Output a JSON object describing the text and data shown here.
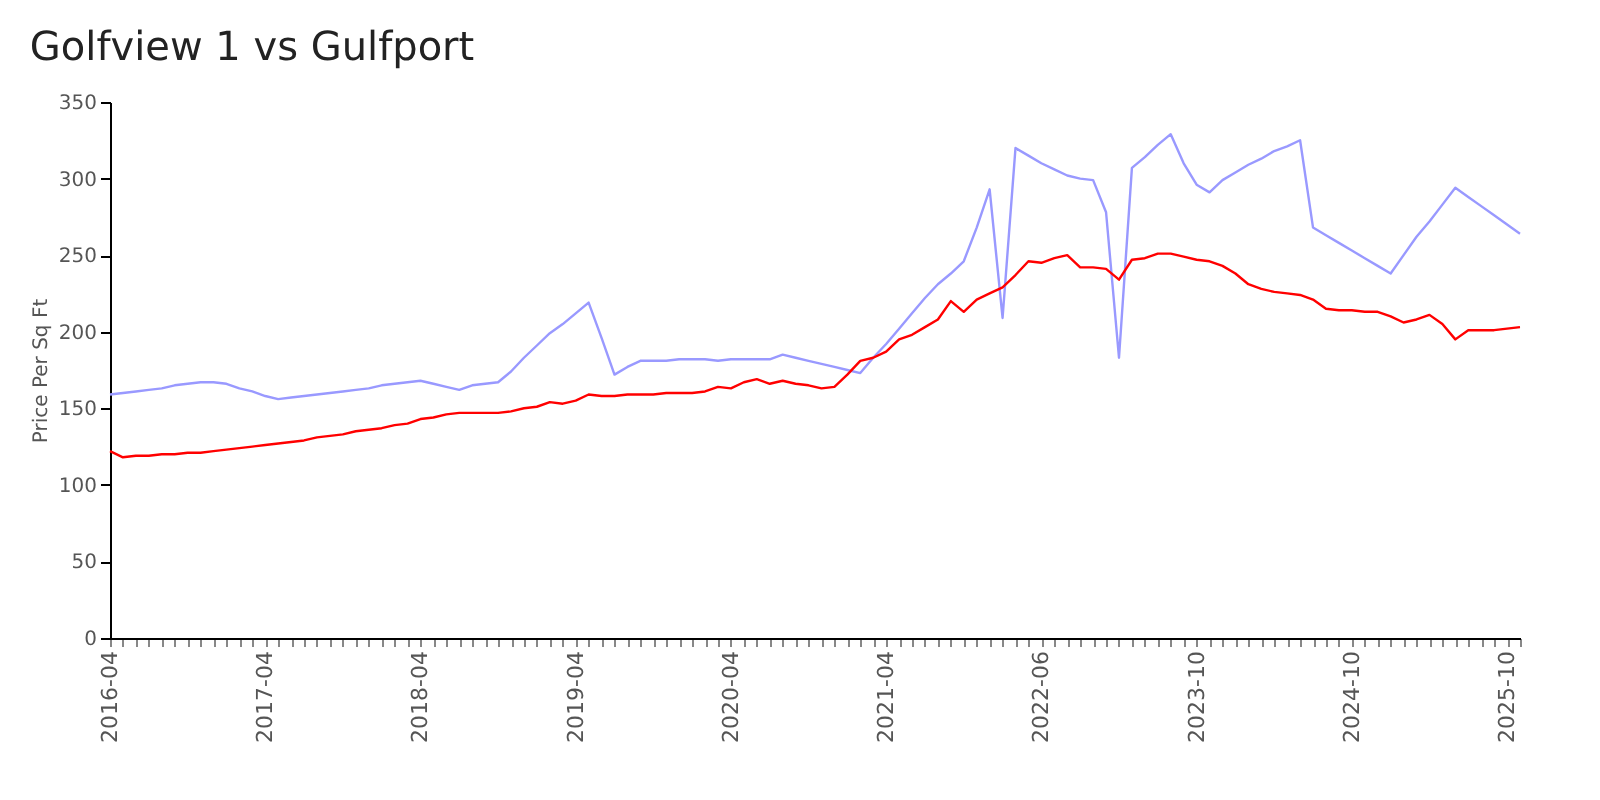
{
  "chart_data": {
    "type": "line",
    "title": "Golfview 1 vs Gulfport",
    "ylabel": "Price Per Sq Ft",
    "categories": [
      "2016-04",
      null,
      null,
      null,
      null,
      null,
      null,
      null,
      null,
      null,
      null,
      null,
      "2017-04",
      null,
      null,
      null,
      null,
      null,
      null,
      null,
      null,
      null,
      null,
      null,
      "2018-04",
      null,
      null,
      null,
      null,
      null,
      null,
      null,
      null,
      null,
      null,
      null,
      "2019-04",
      null,
      null,
      null,
      null,
      null,
      null,
      null,
      null,
      null,
      null,
      null,
      "2020-04",
      null,
      null,
      null,
      null,
      null,
      null,
      null,
      null,
      null,
      null,
      null,
      "2021-04",
      null,
      null,
      null,
      null,
      null,
      null,
      null,
      null,
      null,
      null,
      null,
      "2022-06",
      null,
      null,
      null,
      null,
      null,
      null,
      null,
      null,
      null,
      null,
      null,
      "2023-10",
      null,
      null,
      null,
      null,
      null,
      null,
      null,
      null,
      null,
      null,
      null,
      "2024-10",
      null,
      null,
      null,
      null,
      null,
      null,
      null,
      null,
      null,
      null,
      null,
      "2025-10",
      null
    ],
    "series": [
      {
        "color": "#9999ff",
        "values": [
          159,
          160,
          161,
          162,
          163,
          165,
          166,
          167,
          167,
          166,
          163,
          161,
          158,
          156,
          157,
          158,
          159,
          160,
          161,
          162,
          163,
          165,
          166,
          167,
          168,
          166,
          164,
          162,
          165,
          166,
          167,
          174,
          183,
          191,
          199,
          205,
          212,
          219,
          196,
          172,
          177,
          181,
          181,
          181,
          182,
          182,
          182,
          181,
          182,
          182,
          182,
          182,
          185,
          183,
          181,
          179,
          177,
          175,
          173,
          183,
          192,
          202,
          212,
          222,
          231,
          238,
          246,
          268,
          293,
          209,
          320,
          315,
          310,
          306,
          302,
          300,
          299,
          278,
          183,
          307,
          314,
          322,
          329,
          310,
          296,
          291,
          299,
          304,
          309,
          313,
          318,
          321,
          325,
          268,
          263,
          258,
          253,
          248,
          243,
          238,
          250,
          262,
          272,
          283,
          294,
          288,
          282,
          276,
          270,
          264
        ]
      },
      {
        "color": "#ff0000",
        "values": [
          122,
          118,
          119,
          119,
          120,
          120,
          121,
          121,
          122,
          123,
          124,
          125,
          126,
          127,
          128,
          129,
          131,
          132,
          133,
          135,
          136,
          137,
          139,
          140,
          143,
          144,
          146,
          147,
          147,
          147,
          147,
          148,
          150,
          151,
          154,
          153,
          155,
          159,
          158,
          158,
          159,
          159,
          159,
          160,
          160,
          160,
          161,
          164,
          163,
          167,
          169,
          166,
          168,
          166,
          165,
          163,
          164,
          172,
          181,
          183,
          187,
          195,
          198,
          203,
          208,
          220,
          213,
          221,
          225,
          229,
          237,
          246,
          245,
          248,
          250,
          242,
          242,
          241,
          234,
          247,
          248,
          251,
          251,
          249,
          247,
          246,
          243,
          238,
          231,
          228,
          226,
          225,
          224,
          221,
          215,
          214,
          214,
          213,
          213,
          210,
          206,
          208,
          211,
          205,
          195,
          201,
          201,
          201,
          202,
          203
        ]
      }
    ],
    "ylim": [
      0,
      350
    ],
    "yticks": [
      0,
      50,
      100,
      150,
      200,
      250,
      300,
      350
    ],
    "grid": false,
    "legend": false
  }
}
